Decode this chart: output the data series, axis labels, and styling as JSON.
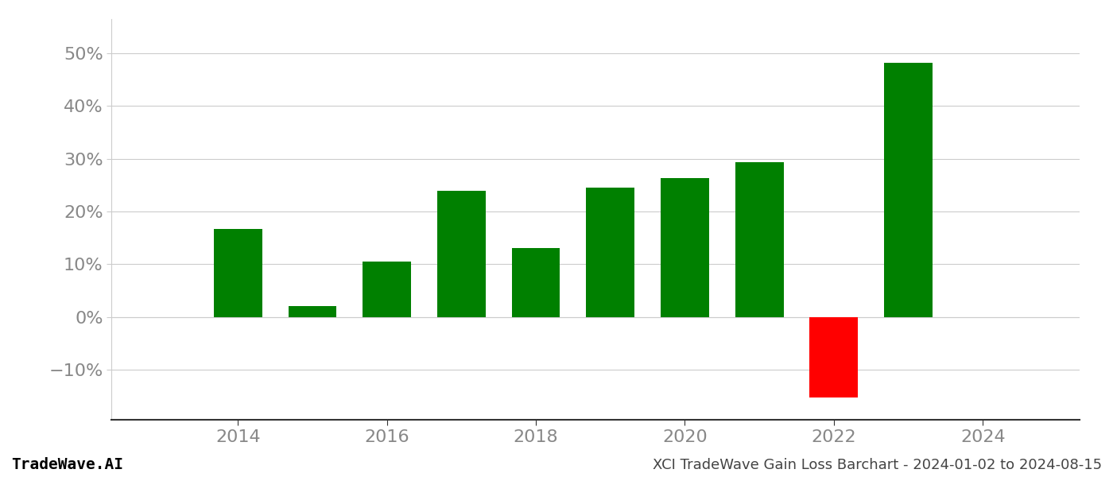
{
  "years": [
    2014,
    2015,
    2016,
    2017,
    2018,
    2019,
    2020,
    2021,
    2022,
    2023
  ],
  "values": [
    0.167,
    0.021,
    0.105,
    0.24,
    0.13,
    0.245,
    0.264,
    0.293,
    -0.153,
    0.482
  ],
  "bar_colors_positive": "#008000",
  "bar_colors_negative": "#ff0000",
  "title": "XCI TradeWave Gain Loss Barchart - 2024-01-02 to 2024-08-15",
  "watermark": "TradeWave.AI",
  "xlim": [
    2012.3,
    2025.3
  ],
  "ylim": [
    -0.195,
    0.565
  ],
  "yticks": [
    -0.1,
    0.0,
    0.1,
    0.2,
    0.3,
    0.4,
    0.5
  ],
  "ytick_labels": [
    "−10%",
    "0%",
    "10%",
    "20%",
    "30%",
    "40%",
    "50%"
  ],
  "xticks": [
    2014,
    2016,
    2018,
    2020,
    2022,
    2024
  ],
  "bar_width": 0.65,
  "background_color": "#ffffff",
  "grid_color": "#cccccc",
  "title_fontsize": 13,
  "watermark_fontsize": 14,
  "tick_fontsize": 16,
  "tick_color": "#888888",
  "spine_color": "#333333"
}
